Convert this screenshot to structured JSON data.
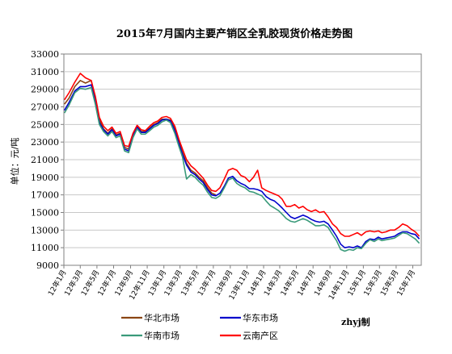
{
  "chart_data": {
    "type": "line",
    "title": "2015年7月国内主要产销区全乳胶现货价格走势图",
    "ylabel": "单位：元/吨",
    "ylim": [
      9000,
      33000
    ],
    "yticks": [
      9000,
      11000,
      13000,
      15000,
      17000,
      19000,
      21000,
      23000,
      25000,
      27000,
      29000,
      31000,
      33000
    ],
    "grid": "horizontal",
    "legend_position": "bottom",
    "credit": "zhyj制",
    "x_range": [
      "2012-01-01",
      "2015-08-01"
    ],
    "categories": [
      "12年1月",
      "12年3月",
      "12年5月",
      "12年7月",
      "12年9月",
      "12年11月",
      "13年1月",
      "13年3月",
      "13年5月",
      "13年7月",
      "13年9月",
      "13年11月",
      "14年1月",
      "14年3月",
      "14年5月",
      "14年7月",
      "14年9月",
      "14年11月",
      "15年1月",
      "15年3月",
      "15年5月",
      "15年7月"
    ],
    "series": [
      {
        "name": "华北市场",
        "color": "#8b4513",
        "x": [
          "2012-01-03",
          "2012-01-20",
          "2012-02-10",
          "2012-03-01",
          "2012-03-20",
          "2012-04-10",
          "2012-04-25",
          "2012-05-10",
          "2012-05-25",
          "2012-06-10",
          "2012-06-25",
          "2012-07-10",
          "2012-07-25",
          "2012-08-10",
          "2012-08-25",
          "2012-09-10",
          "2012-09-25",
          "2012-10-10",
          "2012-10-25",
          "2012-11-10",
          "2012-11-25",
          "2012-12-10",
          "2012-12-25",
          "2013-01-10",
          "2013-01-25",
          "2013-02-10",
          "2013-02-25",
          "2013-03-10",
          "2013-03-25",
          "2013-04-10",
          "2013-04-25",
          "2013-05-10",
          "2013-05-25",
          "2013-06-10",
          "2013-06-25",
          "2013-07-10"
        ],
        "values": [
          27300,
          28000,
          29300,
          30000,
          29700,
          30000,
          28000,
          25500,
          24500,
          24000,
          24500,
          23800,
          24000,
          22400,
          22200,
          23800,
          24800,
          24200,
          24200,
          24600,
          25000,
          25200,
          25600,
          25600,
          25500,
          24500,
          23000,
          21800,
          20600,
          19800,
          19500,
          19000,
          18600,
          17800,
          17200,
          17000
        ]
      },
      {
        "name": "华东市场",
        "color": "#0000cc",
        "x": [
          "2012-01-03",
          "2012-01-20",
          "2012-02-10",
          "2012-03-01",
          "2012-03-20",
          "2012-04-10",
          "2012-04-25",
          "2012-05-10",
          "2012-05-25",
          "2012-06-10",
          "2012-06-25",
          "2012-07-10",
          "2012-07-25",
          "2012-08-10",
          "2012-08-25",
          "2012-09-10",
          "2012-09-25",
          "2012-10-10",
          "2012-10-25",
          "2012-11-10",
          "2012-11-25",
          "2012-12-10",
          "2012-12-25",
          "2013-01-10",
          "2013-01-25",
          "2013-02-10",
          "2013-02-25",
          "2013-03-10",
          "2013-03-25",
          "2013-04-10",
          "2013-04-25",
          "2013-05-10",
          "2013-05-25",
          "2013-06-10",
          "2013-06-25",
          "2013-07-10",
          "2013-07-25",
          "2013-08-10",
          "2013-08-25",
          "2013-09-10",
          "2013-09-25",
          "2013-10-10",
          "2013-10-25",
          "2013-11-10",
          "2013-11-25",
          "2013-12-10",
          "2013-12-25",
          "2014-01-10",
          "2014-01-25",
          "2014-02-10",
          "2014-02-25",
          "2014-03-10",
          "2014-03-25",
          "2014-04-10",
          "2014-04-25",
          "2014-05-10",
          "2014-05-25",
          "2014-06-10",
          "2014-06-25",
          "2014-07-10",
          "2014-07-25",
          "2014-08-10",
          "2014-08-25",
          "2014-09-10",
          "2014-09-25",
          "2014-10-10",
          "2014-10-25",
          "2014-11-10",
          "2014-11-25",
          "2014-12-10",
          "2014-12-25",
          "2015-01-10",
          "2015-01-25",
          "2015-02-10",
          "2015-02-25",
          "2015-03-10",
          "2015-03-25",
          "2015-04-10",
          "2015-04-25",
          "2015-05-10",
          "2015-05-25",
          "2015-06-10",
          "2015-06-25",
          "2015-07-10",
          "2015-07-25"
        ],
        "values": [
          26600,
          27500,
          28800,
          29300,
          29300,
          29500,
          27600,
          25200,
          24400,
          23900,
          24400,
          23700,
          23900,
          22200,
          22000,
          23700,
          24700,
          24100,
          24100,
          24500,
          24900,
          25100,
          25500,
          25600,
          25400,
          24300,
          22800,
          21600,
          20400,
          19600,
          19300,
          18800,
          18400,
          17600,
          17000,
          16900,
          17200,
          18000,
          18900,
          19100,
          18600,
          18300,
          18100,
          17700,
          17700,
          17600,
          17400,
          16800,
          16500,
          16300,
          15900,
          15500,
          15000,
          14500,
          14300,
          14500,
          14700,
          14500,
          14200,
          14000,
          13900,
          14000,
          13700,
          13000,
          12300,
          11400,
          11000,
          11100,
          11000,
          11200,
          11000,
          11700,
          12000,
          11900,
          12200,
          12000,
          12100,
          12200,
          12300,
          12600,
          12800,
          12800,
          12600,
          12500,
          12000
        ]
      },
      {
        "name": "华南市场",
        "color": "#3a9a7a",
        "x": [
          "2012-01-03",
          "2012-01-20",
          "2012-02-10",
          "2012-03-01",
          "2012-03-20",
          "2012-04-10",
          "2012-04-25",
          "2012-05-10",
          "2012-05-25",
          "2012-06-10",
          "2012-06-25",
          "2012-07-10",
          "2012-07-25",
          "2012-08-10",
          "2012-08-25",
          "2012-09-10",
          "2012-09-25",
          "2012-10-10",
          "2012-10-25",
          "2012-11-10",
          "2012-11-25",
          "2012-12-10",
          "2012-12-25",
          "2013-01-10",
          "2013-01-25",
          "2013-02-10",
          "2013-02-25",
          "2013-03-10",
          "2013-03-25",
          "2013-04-10",
          "2013-04-25",
          "2013-05-10",
          "2013-05-25",
          "2013-06-10",
          "2013-06-25",
          "2013-07-10",
          "2013-07-25",
          "2013-08-10",
          "2013-08-25",
          "2013-09-10",
          "2013-09-25",
          "2013-10-10",
          "2013-10-25",
          "2013-11-10",
          "2013-11-25",
          "2013-12-10",
          "2013-12-25",
          "2014-01-10",
          "2014-01-25",
          "2014-02-10",
          "2014-02-25",
          "2014-03-10",
          "2014-03-25",
          "2014-04-10",
          "2014-04-25",
          "2014-05-10",
          "2014-05-25",
          "2014-06-10",
          "2014-06-25",
          "2014-07-10",
          "2014-07-25",
          "2014-08-10",
          "2014-08-25",
          "2014-09-10",
          "2014-09-25",
          "2014-10-10",
          "2014-10-25",
          "2014-11-10",
          "2014-11-25",
          "2014-12-10",
          "2014-12-25",
          "2015-01-10",
          "2015-01-25",
          "2015-02-10",
          "2015-02-25",
          "2015-03-10",
          "2015-03-25",
          "2015-04-10",
          "2015-04-25",
          "2015-05-10",
          "2015-05-25",
          "2015-06-10",
          "2015-06-25",
          "2015-07-10",
          "2015-07-25"
        ],
        "values": [
          26300,
          27200,
          28600,
          29100,
          29000,
          29200,
          27300,
          25000,
          24200,
          23700,
          24200,
          23500,
          23700,
          22000,
          21800,
          23500,
          24500,
          23900,
          23900,
          24300,
          24700,
          24900,
          25300,
          25500,
          25200,
          24000,
          22500,
          21300,
          18800,
          19300,
          19000,
          18500,
          18100,
          17300,
          16700,
          16600,
          16900,
          17800,
          18700,
          18900,
          18300,
          18000,
          17800,
          17400,
          17300,
          17100,
          16900,
          16300,
          15800,
          15500,
          15200,
          14800,
          14300,
          14000,
          13900,
          14100,
          14300,
          14100,
          13800,
          13500,
          13500,
          13600,
          13300,
          12500,
          11800,
          10800,
          10600,
          10800,
          10700,
          11000,
          10900,
          11500,
          11900,
          11700,
          12000,
          11800,
          11900,
          12000,
          12100,
          12400,
          12700,
          12600,
          12300,
          12000,
          11500
        ]
      },
      {
        "name": "云南产区",
        "color": "#ff0000",
        "x": [
          "2012-01-03",
          "2012-01-20",
          "2012-02-10",
          "2012-03-01",
          "2012-03-20",
          "2012-04-10",
          "2012-04-25",
          "2012-05-10",
          "2012-05-25",
          "2012-06-10",
          "2012-06-25",
          "2012-07-10",
          "2012-07-25",
          "2012-08-10",
          "2012-08-25",
          "2012-09-10",
          "2012-09-25",
          "2012-10-10",
          "2012-10-25",
          "2012-11-10",
          "2012-11-25",
          "2012-12-10",
          "2012-12-25",
          "2013-01-10",
          "2013-01-25",
          "2013-02-10",
          "2013-02-25",
          "2013-03-10",
          "2013-03-25",
          "2013-04-10",
          "2013-04-25",
          "2013-05-10",
          "2013-05-25",
          "2013-06-10",
          "2013-06-25",
          "2013-07-10",
          "2013-07-25",
          "2013-08-10",
          "2013-08-25",
          "2013-09-10",
          "2013-09-25",
          "2013-10-10",
          "2013-10-25",
          "2013-11-10",
          "2013-11-25",
          "2013-12-10",
          "2013-12-25",
          "2014-01-10",
          "2014-01-25",
          "2014-02-10",
          "2014-02-25",
          "2014-03-10",
          "2014-03-25",
          "2014-04-10",
          "2014-04-25",
          "2014-05-10",
          "2014-05-25",
          "2014-06-10",
          "2014-06-25",
          "2014-07-10",
          "2014-07-25",
          "2014-08-10",
          "2014-08-25",
          "2014-09-10",
          "2014-09-25",
          "2014-10-10",
          "2014-10-25",
          "2014-11-10",
          "2014-11-25",
          "2014-12-10",
          "2014-12-25",
          "2015-01-10",
          "2015-01-25",
          "2015-02-10",
          "2015-02-25",
          "2015-03-10",
          "2015-03-25",
          "2015-04-10",
          "2015-04-25",
          "2015-05-10",
          "2015-05-25",
          "2015-06-10",
          "2015-06-25",
          "2015-07-10",
          "2015-07-25"
        ],
        "values": [
          27800,
          28600,
          29800,
          30800,
          30300,
          30000,
          28200,
          25800,
          24800,
          24300,
          24700,
          24000,
          24200,
          22600,
          22500,
          24000,
          24900,
          24400,
          24300,
          24800,
          25200,
          25400,
          25800,
          25900,
          25700,
          24800,
          23300,
          22200,
          21000,
          20300,
          19900,
          19400,
          18900,
          18100,
          17500,
          17400,
          17800,
          18800,
          19800,
          20000,
          19800,
          19200,
          19000,
          18500,
          19000,
          19800,
          17800,
          17500,
          17300,
          17100,
          16900,
          16500,
          15700,
          15700,
          15900,
          15500,
          15700,
          15300,
          15100,
          15300,
          15000,
          15100,
          14500,
          13700,
          13300,
          12600,
          12300,
          12300,
          12500,
          12700,
          12400,
          12800,
          12900,
          12800,
          12900,
          12700,
          12800,
          13000,
          13000,
          13300,
          13700,
          13500,
          13100,
          12800,
          12300
        ]
      }
    ]
  }
}
